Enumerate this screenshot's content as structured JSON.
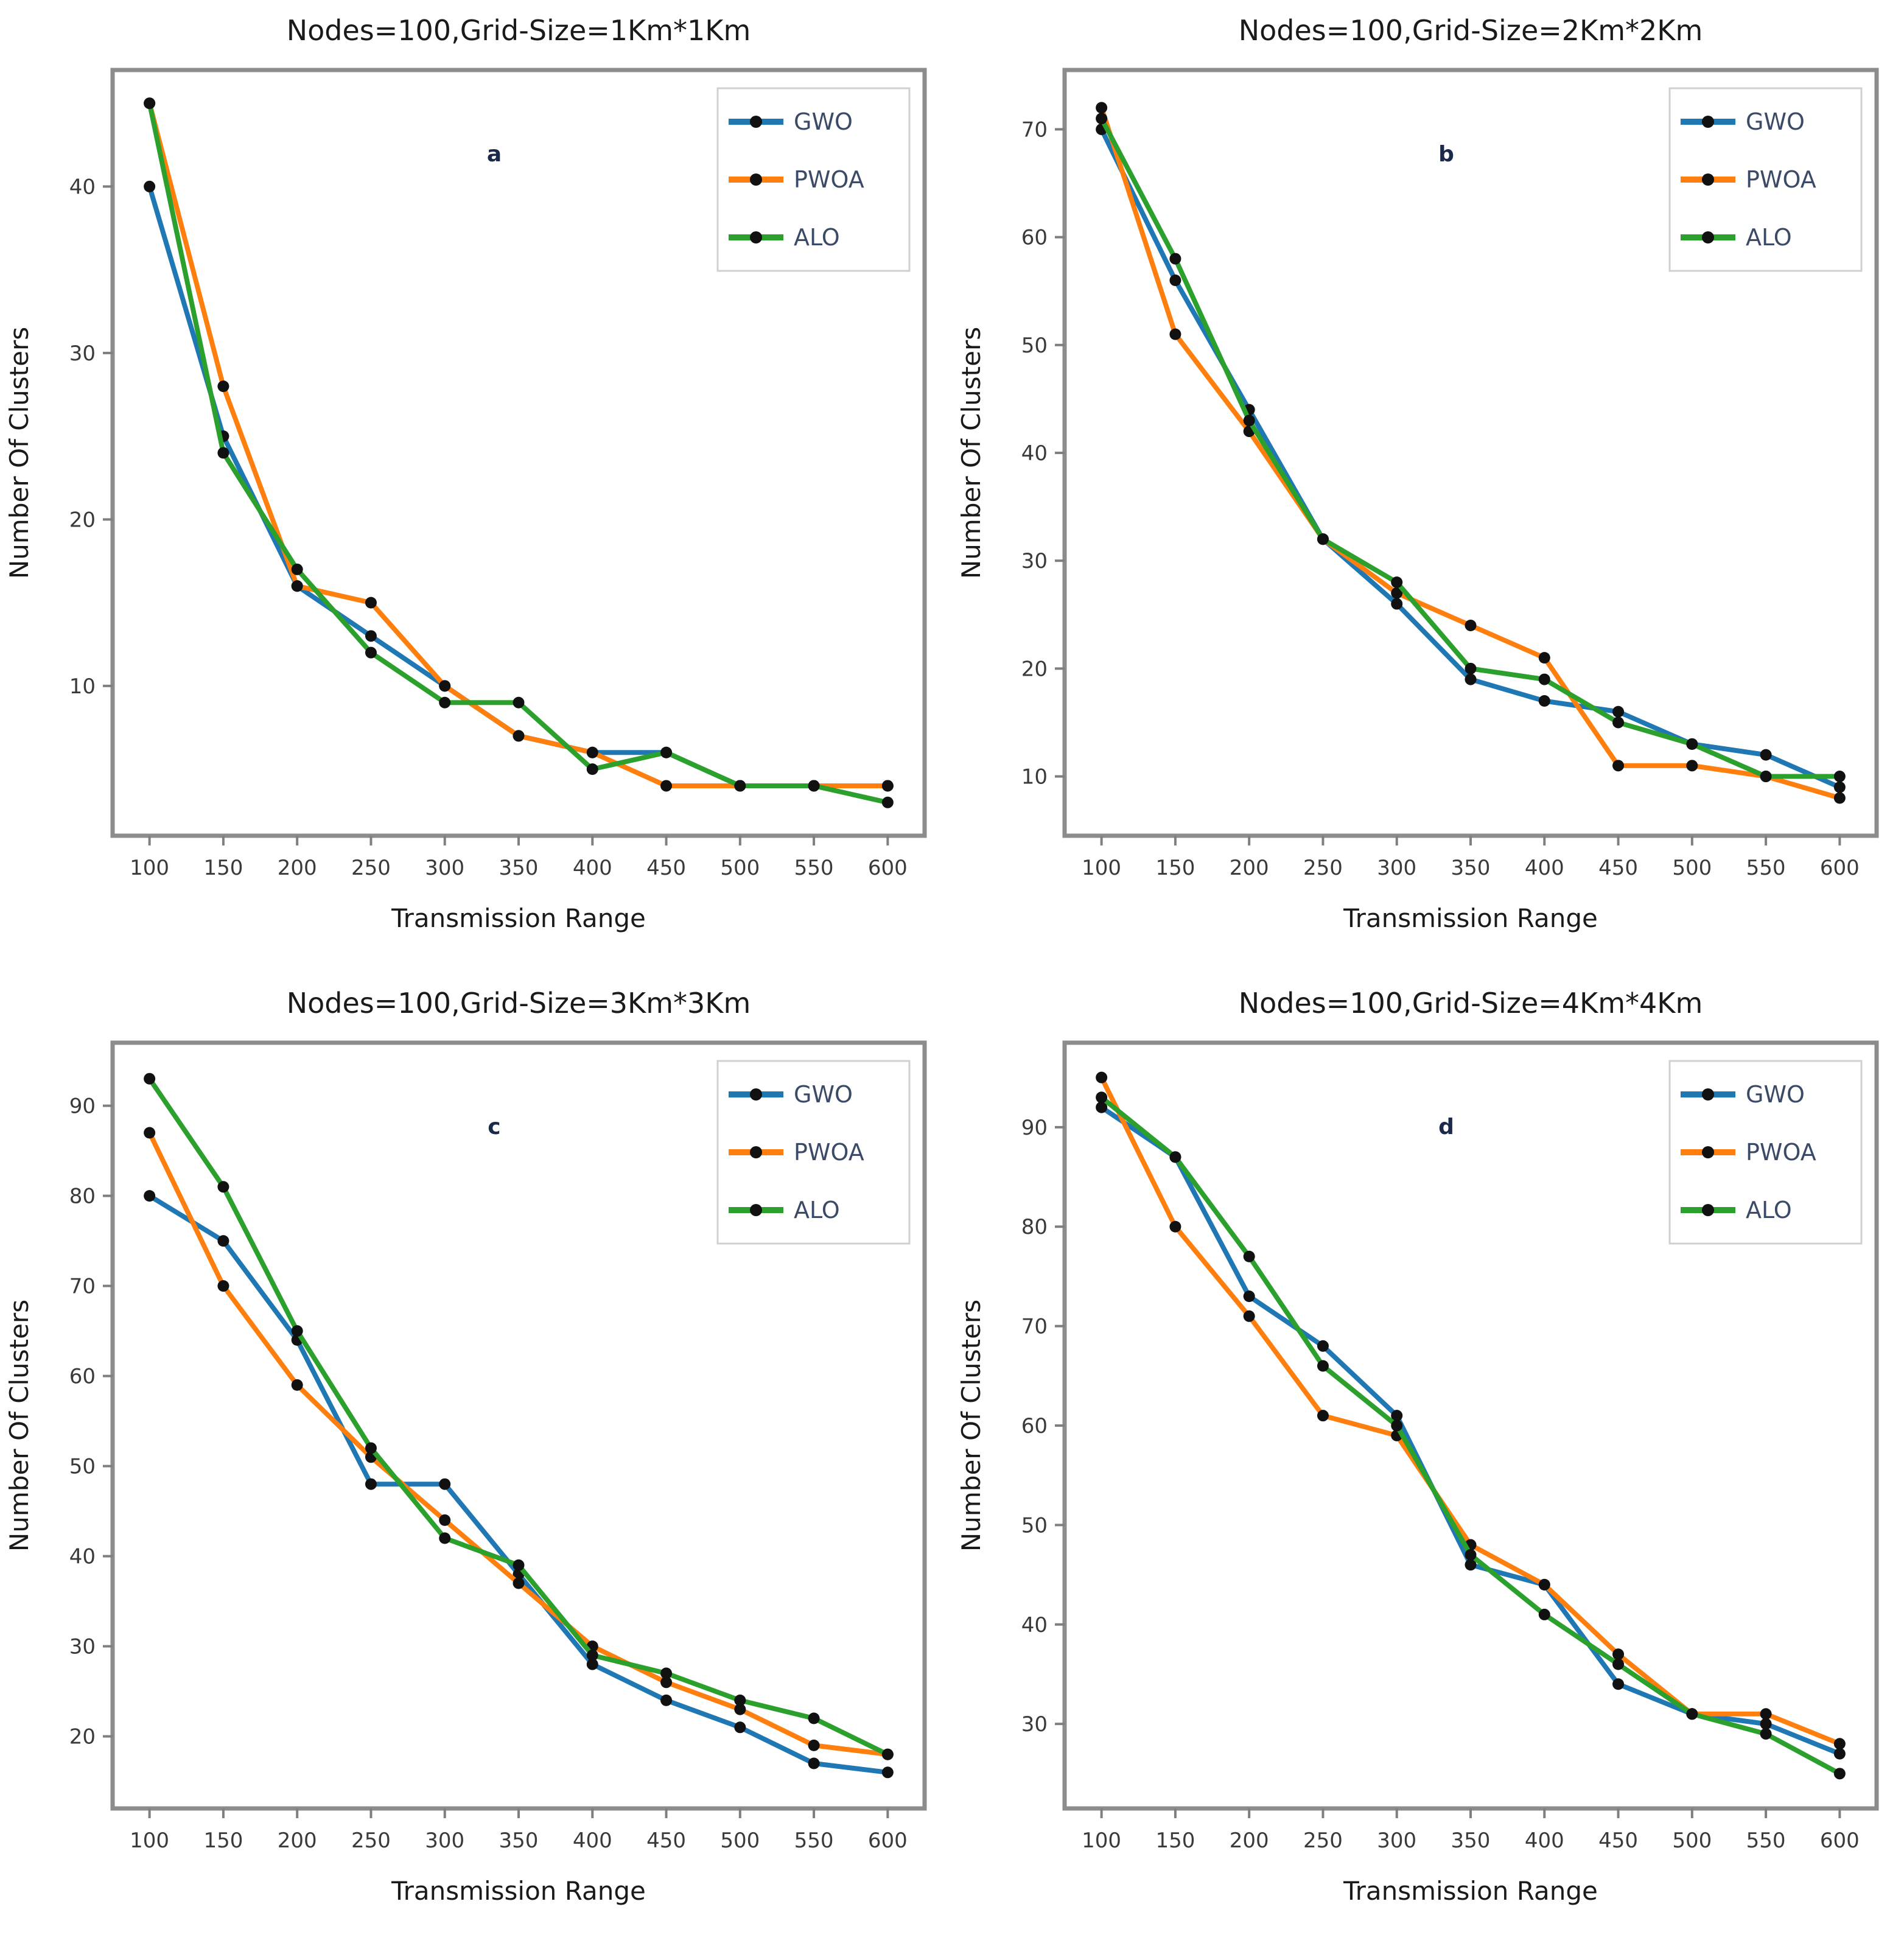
{
  "figure": {
    "background": "#ffffff",
    "panels": [
      "a",
      "b",
      "c",
      "d"
    ]
  },
  "legend": {
    "entries": [
      {
        "label": "GWO",
        "color": "#1f77b4"
      },
      {
        "label": "PWOA",
        "color": "#ff7f0e"
      },
      {
        "label": "ALO",
        "color": "#2ca02c"
      }
    ],
    "marker_color": "#111111",
    "position": "upper right"
  },
  "chart_data": [
    {
      "id": "a",
      "type": "line",
      "title": "Nodes=100,Grid-Size=1Km*1Km",
      "panel_letter": "a",
      "xlabel": "Transmission Range",
      "ylabel": "Number Of Clusters",
      "x": [
        100,
        150,
        200,
        250,
        300,
        350,
        400,
        450,
        500,
        550,
        600
      ],
      "xlim": [
        75,
        625
      ],
      "ylim": [
        1,
        47
      ],
      "yticks": [
        10,
        20,
        30,
        40
      ],
      "grid": false,
      "legend_position": "upper right",
      "series": [
        {
          "name": "GWO",
          "color": "#1f77b4",
          "values": [
            40,
            25,
            16,
            13,
            10,
            7,
            6,
            6,
            4,
            4,
            4
          ]
        },
        {
          "name": "PWOA",
          "color": "#ff7f0e",
          "values": [
            45,
            28,
            16,
            15,
            10,
            7,
            6,
            4,
            4,
            4,
            4
          ]
        },
        {
          "name": "ALO",
          "color": "#2ca02c",
          "values": [
            45,
            24,
            17,
            12,
            9,
            9,
            5,
            6,
            4,
            4,
            3
          ]
        }
      ]
    },
    {
      "id": "b",
      "type": "line",
      "title": "Nodes=100,Grid-Size=2Km*2Km",
      "panel_letter": "b",
      "xlabel": "Transmission Range",
      "ylabel": "Number Of Clusters",
      "x": [
        100,
        150,
        200,
        250,
        300,
        350,
        400,
        450,
        500,
        550,
        600
      ],
      "xlim": [
        75,
        625
      ],
      "ylim": [
        4.5,
        75.5
      ],
      "yticks": [
        10,
        20,
        30,
        40,
        50,
        60,
        70
      ],
      "grid": false,
      "legend_position": "upper right",
      "series": [
        {
          "name": "GWO",
          "color": "#1f77b4",
          "values": [
            70,
            56,
            44,
            32,
            26,
            19,
            17,
            16,
            13,
            12,
            9
          ]
        },
        {
          "name": "PWOA",
          "color": "#ff7f0e",
          "values": [
            72,
            51,
            42,
            32,
            27,
            24,
            21,
            11,
            11,
            10,
            8
          ]
        },
        {
          "name": "ALO",
          "color": "#2ca02c",
          "values": [
            71,
            58,
            43,
            32,
            28,
            20,
            19,
            15,
            13,
            10,
            10
          ]
        }
      ]
    },
    {
      "id": "c",
      "type": "line",
      "title": "Nodes=100,Grid-Size=3Km*3Km",
      "panel_letter": "c",
      "xlabel": "Transmission Range",
      "ylabel": "Number Of Clusters",
      "x": [
        100,
        150,
        200,
        250,
        300,
        350,
        400,
        450,
        500,
        550,
        600
      ],
      "xlim": [
        75,
        625
      ],
      "ylim": [
        12,
        97
      ],
      "yticks": [
        20,
        30,
        40,
        50,
        60,
        70,
        80,
        90
      ],
      "grid": false,
      "legend_position": "upper right",
      "series": [
        {
          "name": "GWO",
          "color": "#1f77b4",
          "values": [
            80,
            75,
            64,
            48,
            48,
            38,
            28,
            24,
            21,
            17,
            16
          ]
        },
        {
          "name": "PWOA",
          "color": "#ff7f0e",
          "values": [
            87,
            70,
            59,
            51,
            44,
            37,
            30,
            26,
            23,
            19,
            18
          ]
        },
        {
          "name": "ALO",
          "color": "#2ca02c",
          "values": [
            93,
            81,
            65,
            52,
            42,
            39,
            29,
            27,
            24,
            22,
            18
          ]
        }
      ]
    },
    {
      "id": "d",
      "type": "line",
      "title": "Nodes=100,Grid-Size=4Km*4Km",
      "panel_letter": "d",
      "xlabel": "Transmission Range",
      "ylabel": "Number Of Clusters",
      "x": [
        100,
        150,
        200,
        250,
        300,
        350,
        400,
        450,
        500,
        550,
        600
      ],
      "xlim": [
        75,
        625
      ],
      "ylim": [
        21.5,
        98.5
      ],
      "yticks": [
        30,
        40,
        50,
        60,
        70,
        80,
        90
      ],
      "grid": false,
      "legend_position": "upper right",
      "series": [
        {
          "name": "GWO",
          "color": "#1f77b4",
          "values": [
            92,
            87,
            73,
            68,
            61,
            46,
            44,
            34,
            31,
            30,
            27
          ]
        },
        {
          "name": "PWOA",
          "color": "#ff7f0e",
          "values": [
            95,
            80,
            71,
            61,
            59,
            48,
            44,
            37,
            31,
            31,
            28
          ]
        },
        {
          "name": "ALO",
          "color": "#2ca02c",
          "values": [
            93,
            87,
            77,
            66,
            60,
            47,
            41,
            36,
            31,
            29,
            25
          ]
        }
      ]
    }
  ],
  "style": {
    "spine_color": "#8c8c8c",
    "tick_color": "#7f7f7f",
    "tick_label_color": "#3a3a3a",
    "title_color": "#1a1a1a",
    "axis_label_color": "#1a1a1a",
    "panel_letter_color": "#1b2a4a",
    "legend_text_color": "#3b4a66",
    "legend_border_color": "#d0d0d0",
    "marker_color": "#111111"
  }
}
